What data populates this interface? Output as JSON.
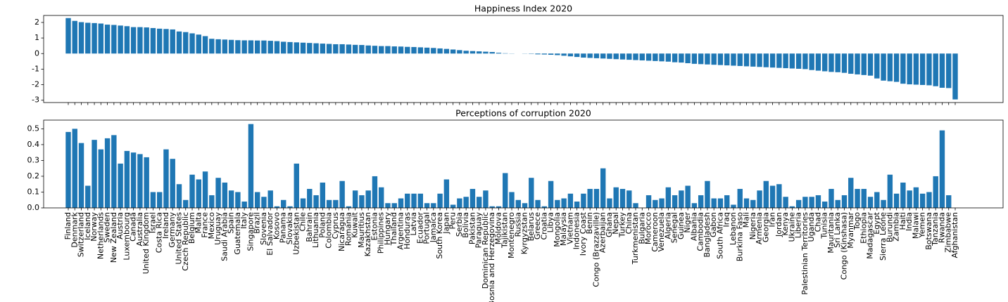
{
  "chart_data": [
    {
      "type": "bar",
      "title": "Happiness Index 2020",
      "color": "#1f77b4",
      "values": [
        2.28,
        2.1,
        2.02,
        1.98,
        1.96,
        1.93,
        1.86,
        1.84,
        1.8,
        1.76,
        1.7,
        1.7,
        1.68,
        1.64,
        1.6,
        1.58,
        1.55,
        1.42,
        1.38,
        1.3,
        1.22,
        1.12,
        0.95,
        0.92,
        0.9,
        0.88,
        0.86,
        0.85,
        0.85,
        0.84,
        0.84,
        0.82,
        0.8,
        0.76,
        0.74,
        0.72,
        0.7,
        0.68,
        0.66,
        0.64,
        0.62,
        0.6,
        0.6,
        0.58,
        0.56,
        0.55,
        0.52,
        0.5,
        0.48,
        0.48,
        0.46,
        0.45,
        0.43,
        0.42,
        0.4,
        0.38,
        0.36,
        0.33,
        0.3,
        0.26,
        0.22,
        0.18,
        0.16,
        0.14,
        0.12,
        0.1,
        0.05,
        0.02,
        0.01,
        0.0,
        -0.01,
        -0.02,
        -0.05,
        -0.06,
        -0.08,
        -0.1,
        -0.14,
        -0.18,
        -0.22,
        -0.26,
        -0.28,
        -0.3,
        -0.32,
        -0.34,
        -0.36,
        -0.38,
        -0.4,
        -0.42,
        -0.44,
        -0.46,
        -0.48,
        -0.5,
        -0.52,
        -0.56,
        -0.58,
        -0.62,
        -0.66,
        -0.68,
        -0.7,
        -0.72,
        -0.74,
        -0.76,
        -0.78,
        -0.8,
        -0.82,
        -0.84,
        -0.86,
        -0.88,
        -0.9,
        -0.92,
        -0.94,
        -0.96,
        -0.98,
        -1.0,
        -1.06,
        -1.1,
        -1.14,
        -1.18,
        -1.2,
        -1.24,
        -1.3,
        -1.34,
        -1.38,
        -1.42,
        -1.6,
        -1.74,
        -1.78,
        -1.82,
        -1.94,
        -1.98,
        -2.0,
        -2.02,
        -2.04,
        -2.1,
        -2.2,
        -2.22,
        -2.95
      ],
      "ylim": [
        -3.15,
        2.45
      ],
      "yticks": [
        -3,
        -2,
        -1,
        0,
        1,
        2
      ]
    },
    {
      "type": "bar",
      "title": "Perceptions of corruption 2020",
      "color": "#1f77b4",
      "categories": [
        "Finland",
        "Denmark",
        "Switzerland",
        "Iceland",
        "Norway",
        "Netherlands",
        "Sweden",
        "New Zealand",
        "Austria",
        "Luxembourg",
        "Canada",
        "Australia",
        "United Kingdom",
        "Israel",
        "Costa Rica",
        "Ireland",
        "Germany",
        "United States",
        "Czech Republic",
        "Belgium",
        "Malta",
        "France",
        "Mexico",
        "Uruguay",
        "Saudi Arabia",
        "Spain",
        "Guatemala",
        "Italy",
        "Singapore",
        "Brazil",
        "Slovenia",
        "El Salvador",
        "Kosovo",
        "Panama",
        "Slovakia",
        "Uzbekistan",
        "Chile",
        "Bahrain",
        "Lithuania",
        "Poland",
        "Colombia",
        "Cyprus",
        "Nicaragua",
        "Romania",
        "Kuwait",
        "Mauritius",
        "Kazakhstan",
        "Estonia",
        "Philippines",
        "Hungary",
        "Thailand",
        "Argentina",
        "Honduras",
        "Latvia",
        "Ecuador",
        "Portugal",
        "Jamaica",
        "South Korea",
        "Japan",
        "Peru",
        "Serbia",
        "Bolivia",
        "Pakistan",
        "Paraguay",
        "Dominican Republic",
        "Bosnia and Herzegovina",
        "Moldova",
        "Tajikistan",
        "Montenegro",
        "Russia",
        "Kyrgyzstan",
        "Belarus",
        "Greece",
        "Croatia",
        "Libya",
        "Mongolia",
        "Malaysia",
        "Vietnam",
        "Indonesia",
        "Ivory Coast",
        "Benin",
        "Congo (Brazzaville)",
        "Azerbaijan",
        "Ghana",
        "Nepal",
        "Turkey",
        "China",
        "Turkmenistan",
        "Bulgaria",
        "Morocco",
        "Cameroon",
        "Venezuela",
        "Algeria",
        "Senegal",
        "Guinea",
        "Niger",
        "Albania",
        "Cambodia",
        "Bangladesh",
        "Gabon",
        "South Africa",
        "Iraq",
        "Lebanon",
        "Burkina Faso",
        "Mali",
        "Nigeria",
        "Armenia",
        "Georgia",
        "Iran",
        "Jordan",
        "Kenya",
        "Ukraine",
        "Liberia",
        "Palestinian Territories",
        "Uganda",
        "Chad",
        "Tunisia",
        "Mauritania",
        "Sri Lanka",
        "Congo (Kinshasa)",
        "Myanmar",
        "Togo",
        "Ethiopia",
        "Madagascar",
        "Egypt",
        "Sierra Leone",
        "Burundi",
        "Zambia",
        "Haiti",
        "India",
        "Malawi",
        "Yemen",
        "Botswana",
        "Tanzania",
        "Rwanda",
        "Zimbabwe",
        "Afghanistan"
      ],
      "values": [
        0.48,
        0.5,
        0.41,
        0.14,
        0.43,
        0.37,
        0.44,
        0.46,
        0.28,
        0.36,
        0.35,
        0.34,
        0.32,
        0.1,
        0.1,
        0.37,
        0.31,
        0.15,
        0.05,
        0.21,
        0.18,
        0.23,
        0.08,
        0.19,
        0.16,
        0.11,
        0.1,
        0.04,
        0.53,
        0.1,
        0.07,
        0.11,
        0.01,
        0.05,
        0.01,
        0.28,
        0.06,
        0.12,
        0.08,
        0.16,
        0.05,
        0.05,
        0.17,
        0.01,
        0.11,
        0.08,
        0.11,
        0.2,
        0.13,
        0.03,
        0.03,
        0.06,
        0.09,
        0.09,
        0.09,
        0.03,
        0.03,
        0.09,
        0.18,
        0.02,
        0.06,
        0.07,
        0.12,
        0.07,
        0.11,
        0.01,
        0.01,
        0.22,
        0.1,
        0.05,
        0.03,
        0.19,
        0.05,
        0.01,
        0.17,
        0.05,
        0.06,
        0.09,
        0.04,
        0.09,
        0.12,
        0.12,
        0.25,
        0.06,
        0.13,
        0.12,
        0.11,
        0.03,
        0.0,
        0.08,
        0.05,
        0.06,
        0.13,
        0.08,
        0.11,
        0.14,
        0.03,
        0.08,
        0.17,
        0.06,
        0.06,
        0.08,
        0.02,
        0.12,
        0.06,
        0.05,
        0.11,
        0.17,
        0.14,
        0.15,
        0.07,
        0.01,
        0.05,
        0.07,
        0.07,
        0.08,
        0.04,
        0.12,
        0.05,
        0.08,
        0.19,
        0.12,
        0.12,
        0.07,
        0.1,
        0.05,
        0.21,
        0.09,
        0.16,
        0.11,
        0.13,
        0.09,
        0.1,
        0.2,
        0.49,
        0.08,
        0.0
      ],
      "ylim": [
        0,
        0.555
      ],
      "yticks": [
        {
          "value": 0,
          "label": "0.0"
        },
        0.1,
        0.2,
        0.3,
        0.4,
        0.5
      ]
    }
  ]
}
